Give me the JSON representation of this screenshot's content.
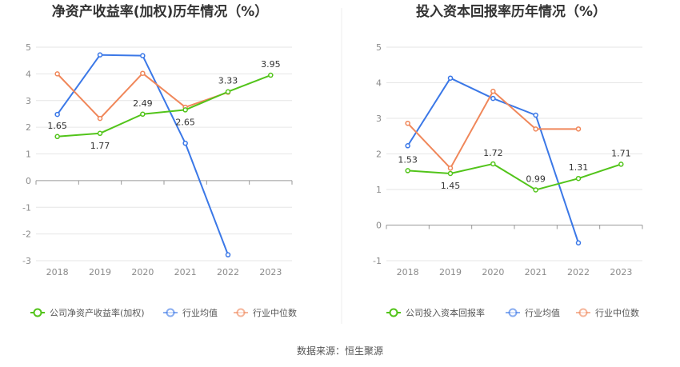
{
  "source": "数据来源：恒生聚源",
  "colors": {
    "company": "#52c41a",
    "avg": "#3b78e7",
    "median": "#f0875a"
  },
  "chart_data": [
    {
      "type": "line",
      "title": "净资产收益率(加权)历年情况（%）",
      "categories": [
        "2018",
        "2019",
        "2020",
        "2021",
        "2022",
        "2023"
      ],
      "ylim": [
        -3,
        5
      ],
      "yticks": [
        -3,
        -2,
        -1,
        0,
        1,
        2,
        3,
        4,
        5
      ],
      "series": [
        {
          "key": "company",
          "name": "公司净资产收益率(加权)",
          "values": [
            1.65,
            1.77,
            2.49,
            2.65,
            3.33,
            3.95
          ],
          "labels": [
            "1.65",
            "1.77",
            "2.49",
            "2.65",
            "3.33",
            "3.95"
          ]
        },
        {
          "key": "avg",
          "name": "行业均值",
          "values": [
            2.48,
            4.71,
            4.68,
            1.4,
            -2.78,
            null
          ]
        },
        {
          "key": "median",
          "name": "行业中位数",
          "values": [
            4.0,
            2.33,
            4.02,
            2.75,
            3.31,
            null
          ]
        }
      ]
    },
    {
      "type": "line",
      "title": "投入资本回报率历年情况（%）",
      "categories": [
        "2018",
        "2019",
        "2020",
        "2021",
        "2022",
        "2023"
      ],
      "ylim": [
        -1,
        5
      ],
      "yticks": [
        -1,
        0,
        1,
        2,
        3,
        4,
        5
      ],
      "series": [
        {
          "key": "company",
          "name": "公司投入资本回报率",
          "values": [
            1.53,
            1.45,
            1.72,
            0.99,
            1.31,
            1.71
          ],
          "labels": [
            "1.53",
            "1.45",
            "1.72",
            "0.99",
            "1.31",
            "1.71"
          ]
        },
        {
          "key": "avg",
          "name": "行业均值",
          "values": [
            2.23,
            4.13,
            3.56,
            3.09,
            -0.5,
            null
          ]
        },
        {
          "key": "median",
          "name": "行业中位数",
          "values": [
            2.86,
            1.6,
            3.76,
            2.7,
            2.7,
            null
          ]
        }
      ]
    }
  ]
}
